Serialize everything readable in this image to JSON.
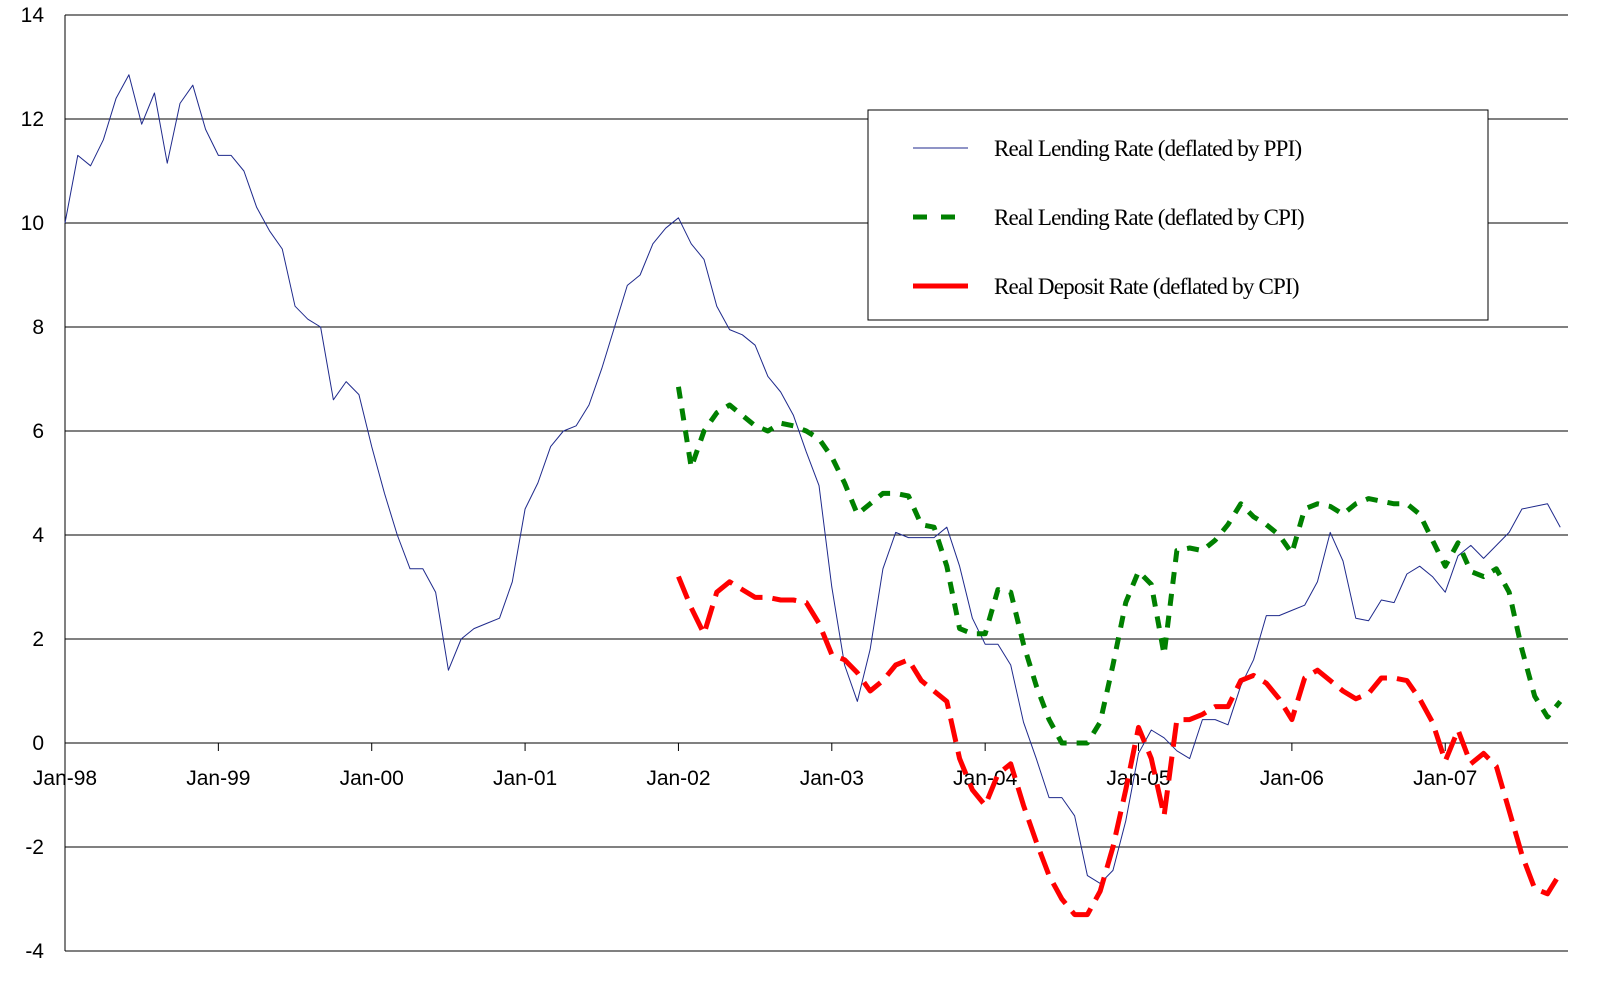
{
  "chart_data": {
    "type": "line",
    "categories": [
      "Jan-98",
      null,
      null,
      null,
      null,
      null,
      null,
      null,
      null,
      null,
      null,
      null,
      "Jan-99",
      null,
      null,
      null,
      null,
      null,
      null,
      null,
      null,
      null,
      null,
      null,
      "Jan-00",
      null,
      null,
      null,
      null,
      null,
      null,
      null,
      null,
      null,
      null,
      null,
      "Jan-01",
      null,
      null,
      null,
      null,
      null,
      null,
      null,
      null,
      null,
      null,
      null,
      "Jan-02",
      null,
      null,
      null,
      null,
      null,
      null,
      null,
      null,
      null,
      null,
      null,
      "Jan-03",
      null,
      null,
      null,
      null,
      null,
      null,
      null,
      null,
      null,
      null,
      null,
      "Jan-04",
      null,
      null,
      null,
      null,
      null,
      null,
      null,
      null,
      null,
      null,
      null,
      "Jan-05",
      null,
      null,
      null,
      null,
      null,
      null,
      null,
      null,
      null,
      null,
      null,
      "Jan-06",
      null,
      null,
      null,
      null,
      null,
      null,
      null,
      null,
      null,
      null,
      null,
      "Jan-07",
      null,
      null,
      null,
      null,
      null,
      null,
      null,
      null,
      null
    ],
    "series": [
      {
        "name": "Real Lending Rate (deflated by PPI)",
        "color": "#1f2a8c",
        "line_style": "solid",
        "values": [
          10.0,
          11.3,
          11.1,
          11.6,
          12.4,
          12.85,
          11.9,
          12.5,
          11.15,
          12.3,
          12.65,
          11.8,
          11.3,
          11.3,
          11.0,
          10.3,
          9.85,
          9.5,
          8.4,
          8.15,
          8.0,
          6.6,
          6.95,
          6.7,
          5.7,
          4.8,
          4.0,
          3.35,
          3.35,
          2.9,
          1.4,
          2.0,
          2.2,
          2.3,
          2.4,
          3.1,
          4.5,
          5.0,
          5.7,
          6.0,
          6.1,
          6.5,
          7.2,
          8.0,
          8.8,
          9.0,
          9.6,
          9.9,
          10.1,
          9.6,
          9.3,
          8.4,
          7.95,
          7.85,
          7.65,
          7.05,
          6.75,
          6.3,
          5.6,
          4.95,
          3.0,
          1.5,
          0.8,
          1.8,
          3.35,
          4.05,
          3.95,
          3.95,
          3.95,
          4.15,
          3.4,
          2.4,
          1.9,
          1.9,
          1.5,
          0.4,
          -0.3,
          -1.05,
          -1.05,
          -1.4,
          -2.55,
          -2.7,
          -2.45,
          -1.5,
          -0.2,
          0.25,
          0.1,
          -0.15,
          -0.3,
          0.45,
          0.45,
          0.35,
          1.1,
          1.6,
          2.45,
          2.45,
          2.55,
          2.65,
          3.1,
          4.05,
          3.5,
          2.4,
          2.35,
          2.75,
          2.7,
          3.25,
          3.4,
          3.2,
          2.9,
          3.6,
          3.8,
          3.55,
          3.8,
          4.05,
          4.5,
          4.55,
          4.6,
          4.15
        ]
      },
      {
        "name": "Real Lending Rate (deflated by CPI)",
        "color": "#008000",
        "line_style": "dotted",
        "values": [
          null,
          null,
          null,
          null,
          null,
          null,
          null,
          null,
          null,
          null,
          null,
          null,
          null,
          null,
          null,
          null,
          null,
          null,
          null,
          null,
          null,
          null,
          null,
          null,
          null,
          null,
          null,
          null,
          null,
          null,
          null,
          null,
          null,
          null,
          null,
          null,
          null,
          null,
          null,
          null,
          null,
          null,
          null,
          null,
          null,
          null,
          null,
          null,
          6.85,
          5.3,
          6.0,
          6.35,
          6.5,
          6.3,
          6.1,
          6.0,
          6.15,
          6.1,
          6.0,
          5.85,
          5.5,
          5.0,
          4.4,
          4.6,
          4.8,
          4.8,
          4.75,
          4.2,
          4.15,
          3.4,
          2.2,
          2.1,
          2.1,
          2.95,
          2.9,
          1.9,
          1.1,
          0.45,
          0.0,
          0.0,
          0.0,
          0.4,
          1.5,
          2.7,
          3.3,
          3.05,
          1.7,
          3.7,
          3.75,
          3.7,
          3.9,
          4.2,
          4.6,
          4.35,
          4.2,
          4.0,
          3.65,
          4.5,
          4.6,
          4.55,
          4.4,
          4.6,
          4.7,
          4.65,
          4.6,
          4.6,
          4.4,
          3.9,
          3.4,
          3.85,
          3.3,
          3.2,
          3.35,
          2.9,
          1.8,
          0.9,
          0.5,
          0.8
        ]
      },
      {
        "name": "Real Deposit Rate (deflated by  CPI)",
        "color": "#ff0000",
        "line_style": "dashed",
        "values": [
          null,
          null,
          null,
          null,
          null,
          null,
          null,
          null,
          null,
          null,
          null,
          null,
          null,
          null,
          null,
          null,
          null,
          null,
          null,
          null,
          null,
          null,
          null,
          null,
          null,
          null,
          null,
          null,
          null,
          null,
          null,
          null,
          null,
          null,
          null,
          null,
          null,
          null,
          null,
          null,
          null,
          null,
          null,
          null,
          null,
          null,
          null,
          null,
          3.2,
          2.6,
          2.1,
          2.9,
          3.1,
          2.95,
          2.8,
          2.8,
          2.75,
          2.75,
          2.7,
          2.3,
          1.7,
          1.6,
          1.35,
          1.0,
          1.2,
          1.5,
          1.6,
          1.2,
          1.0,
          0.8,
          -0.3,
          -0.9,
          -1.2,
          -0.6,
          -0.4,
          -1.2,
          -1.9,
          -2.55,
          -3.0,
          -3.3,
          -3.3,
          -2.85,
          -2.0,
          -0.9,
          0.3,
          -0.3,
          -1.4,
          0.45,
          0.45,
          0.55,
          0.7,
          0.7,
          1.2,
          1.3,
          1.15,
          0.85,
          0.45,
          1.25,
          1.4,
          1.2,
          1.0,
          0.85,
          0.95,
          1.25,
          1.25,
          1.2,
          0.85,
          0.4,
          -0.35,
          0.25,
          -0.4,
          -0.2,
          -0.45,
          -1.3,
          -2.15,
          -2.8,
          -2.9,
          -2.5
        ]
      }
    ],
    "ylim": [
      -4,
      14
    ],
    "yticks": [
      -4,
      -2,
      0,
      2,
      4,
      6,
      8,
      10,
      12,
      14
    ],
    "grid": true,
    "legend": "upper right"
  }
}
